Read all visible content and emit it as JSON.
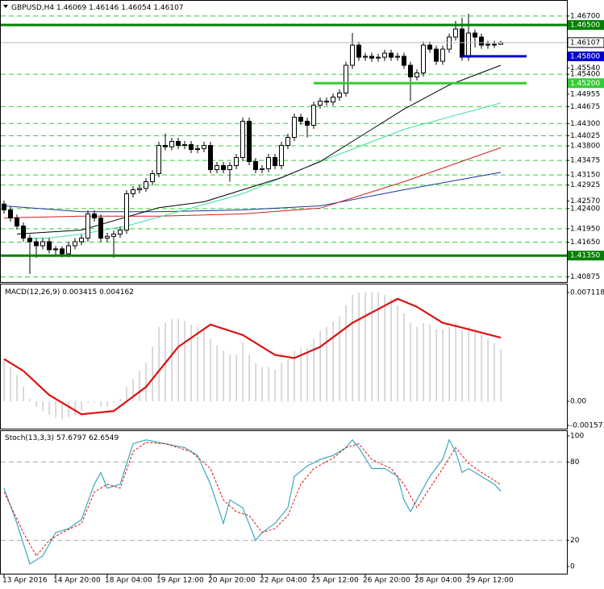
{
  "chart_data": [
    {
      "type": "candlestick",
      "title": "GBPUSD,H4",
      "categories": [
        "13 Apr 2016",
        null,
        null,
        null,
        null,
        null,
        null,
        null,
        "14 Apr 20:00",
        null,
        null,
        null,
        null,
        null,
        null,
        null,
        "18 Apr 04:00",
        null,
        null,
        null,
        null,
        null,
        null,
        null,
        "19 Apr 12:00",
        null,
        null,
        null,
        null,
        null,
        null,
        null,
        "20 Apr 20:00",
        null,
        null,
        null,
        null,
        null,
        null,
        null,
        "22 Apr 04:00",
        null,
        null,
        null,
        null,
        null,
        null,
        null,
        "25 Apr 12:00",
        null,
        null,
        null,
        null,
        null,
        null,
        null,
        "26 Apr 20:00",
        null,
        null,
        null,
        null,
        null,
        null,
        null,
        "28 Apr 04:00",
        null,
        null,
        null,
        null,
        null,
        null,
        null,
        "29 Apr 12:00",
        null,
        null,
        null,
        null,
        null
      ],
      "ohlc": [
        [
          1.425,
          1.4258,
          1.4229,
          1.4237
        ],
        [
          1.4237,
          1.4245,
          1.4211,
          1.4219
        ],
        [
          1.4219,
          1.4227,
          1.4193,
          1.4201
        ],
        [
          1.4201,
          1.4209,
          1.4166,
          1.4174
        ],
        [
          1.4174,
          1.4182,
          1.4094,
          1.4166
        ],
        [
          1.4166,
          1.4174,
          1.413,
          1.4157
        ],
        [
          1.4157,
          1.4174,
          1.4149,
          1.4166
        ],
        [
          1.4166,
          1.4174,
          1.414,
          1.4148
        ],
        [
          1.4148,
          1.4156,
          1.4135,
          1.415
        ],
        [
          1.415,
          1.4156,
          1.4131,
          1.4139
        ],
        [
          1.4139,
          1.4165,
          1.4131,
          1.4157
        ],
        [
          1.4157,
          1.4174,
          1.4149,
          1.4166
        ],
        [
          1.4166,
          1.4182,
          1.4158,
          1.4174
        ],
        [
          1.4174,
          1.4236,
          1.4166,
          1.4228
        ],
        [
          1.4228,
          1.4236,
          1.4211,
          1.4219
        ],
        [
          1.4219,
          1.4227,
          1.4166,
          1.4174
        ],
        [
          1.4174,
          1.4186,
          1.4166,
          1.4178
        ],
        [
          1.4178,
          1.4191,
          1.413,
          1.4183
        ],
        [
          1.4183,
          1.42,
          1.4175,
          1.4192
        ],
        [
          1.4192,
          1.4281,
          1.4184,
          1.4273
        ],
        [
          1.4273,
          1.429,
          1.4265,
          1.4282
        ],
        [
          1.4282,
          1.4293,
          1.4274,
          1.4285
        ],
        [
          1.4285,
          1.4308,
          1.4277,
          1.43
        ],
        [
          1.43,
          1.4326,
          1.4292,
          1.4318
        ],
        [
          1.4318,
          1.4389,
          1.431,
          1.4381
        ],
        [
          1.4381,
          1.4408,
          1.437,
          1.4378
        ],
        [
          1.4378,
          1.4398,
          1.437,
          1.439
        ],
        [
          1.439,
          1.4398,
          1.4373,
          1.4381
        ],
        [
          1.4381,
          1.4391,
          1.4373,
          1.4383
        ],
        [
          1.4383,
          1.4391,
          1.4364,
          1.4372
        ],
        [
          1.4372,
          1.4382,
          1.4364,
          1.4374
        ],
        [
          1.4374,
          1.4389,
          1.4366,
          1.4381
        ],
        [
          1.4381,
          1.4389,
          1.4319,
          1.4327
        ],
        [
          1.4327,
          1.4344,
          1.4319,
          1.4336
        ],
        [
          1.4336,
          1.4344,
          1.4319,
          1.4327
        ],
        [
          1.4327,
          1.4344,
          1.43,
          1.4336
        ],
        [
          1.4336,
          1.4362,
          1.4328,
          1.4354
        ],
        [
          1.4354,
          1.4443,
          1.4346,
          1.4435
        ],
        [
          1.4435,
          1.4443,
          1.4337,
          1.4345
        ],
        [
          1.4345,
          1.4353,
          1.4319,
          1.4327
        ],
        [
          1.4327,
          1.4337,
          1.4319,
          1.4329
        ],
        [
          1.4329,
          1.4362,
          1.4321,
          1.4354
        ],
        [
          1.4354,
          1.4362,
          1.4328,
          1.4336
        ],
        [
          1.4336,
          1.4389,
          1.4328,
          1.4381
        ],
        [
          1.4381,
          1.4407,
          1.4373,
          1.4399
        ],
        [
          1.4399,
          1.4452,
          1.4391,
          1.4444
        ],
        [
          1.4444,
          1.4452,
          1.4427,
          1.4435
        ],
        [
          1.4435,
          1.4443,
          1.4399,
          1.4426
        ],
        [
          1.4426,
          1.4479,
          1.4418,
          1.4471
        ],
        [
          1.4471,
          1.4488,
          1.4463,
          1.448
        ],
        [
          1.448,
          1.4488,
          1.447,
          1.4478
        ],
        [
          1.4478,
          1.4497,
          1.447,
          1.4489
        ],
        [
          1.4489,
          1.4506,
          1.4481,
          1.4498
        ],
        [
          1.4498,
          1.4568,
          1.449,
          1.456
        ],
        [
          1.456,
          1.4632,
          1.4552,
          1.4605
        ],
        [
          1.4605,
          1.4613,
          1.457,
          1.4578
        ],
        [
          1.4578,
          1.4588,
          1.457,
          1.458
        ],
        [
          1.458,
          1.4588,
          1.4568,
          1.4576
        ],
        [
          1.4576,
          1.4586,
          1.4568,
          1.4578
        ],
        [
          1.4578,
          1.4595,
          1.457,
          1.4587
        ],
        [
          1.4587,
          1.4595,
          1.457,
          1.4578
        ],
        [
          1.4578,
          1.4588,
          1.457,
          1.458
        ],
        [
          1.458,
          1.4588,
          1.4552,
          1.456
        ],
        [
          1.456,
          1.4568,
          1.448,
          1.4534
        ],
        [
          1.4534,
          1.4551,
          1.4526,
          1.4543
        ],
        [
          1.4543,
          1.4613,
          1.4535,
          1.4605
        ],
        [
          1.4605,
          1.4613,
          1.4588,
          1.4596
        ],
        [
          1.4596,
          1.4604,
          1.4561,
          1.4569
        ],
        [
          1.4569,
          1.4604,
          1.4561,
          1.4596
        ],
        [
          1.4596,
          1.4631,
          1.4588,
          1.4623
        ],
        [
          1.4623,
          1.4659,
          1.4615,
          1.4641
        ],
        [
          1.4641,
          1.4666,
          1.457,
          1.4578
        ],
        [
          1.4578,
          1.4675,
          1.457,
          1.4632
        ],
        [
          1.4632,
          1.464,
          1.46,
          1.4623
        ],
        [
          1.4623,
          1.4631,
          1.4597,
          1.4605
        ],
        [
          1.4605,
          1.4615,
          1.4597,
          1.4607
        ],
        [
          1.4607,
          1.4615,
          1.4599,
          1.46069
        ],
        [
          1.46069,
          1.46146,
          1.46054,
          1.46107
        ]
      ],
      "series": [
        {
          "color": "#2030a0",
          "x": [
            0,
            12,
            24,
            37,
            49,
            62,
            77
          ],
          "values": [
            1.4246,
            1.4233,
            1.4233,
            1.4237,
            1.4246,
            1.4282,
            1.4321
          ]
        },
        {
          "color": "#d02020",
          "x": [
            0,
            12,
            24,
            37,
            49,
            62,
            77
          ],
          "values": [
            1.4219,
            1.4223,
            1.4223,
            1.4228,
            1.4241,
            1.43,
            1.4376
          ]
        },
        {
          "color": "#40e0a0",
          "x": [
            4,
            7,
            12,
            19,
            28,
            37,
            49,
            62,
            77
          ],
          "values": [
            1.4174,
            1.4174,
            1.4183,
            1.4201,
            1.4237,
            1.4273,
            1.4345,
            1.4417,
            1.4476
          ]
        },
        {
          "color": "#000000",
          "x": [
            2,
            12,
            24,
            31,
            37,
            43,
            49,
            56,
            62,
            69,
            77
          ],
          "values": [
            1.4183,
            1.4192,
            1.4242,
            1.4255,
            1.4282,
            1.4309,
            1.4345,
            1.4408,
            1.4462,
            1.4516,
            1.456
          ]
        }
      ],
      "ylim": [
        1.4076,
        1.4704
      ],
      "yticks": [
        {
          "value": 1.4554,
          "label": "1.45540"
        },
        1.44955,
        {
          "value": 1.4257,
          "label": "1.42570"
        }
      ],
      "levels": [
        {
          "value": 1.467,
          "label": "1.46700"
        },
        {
          "value": 1.454,
          "label": "1.45400"
        },
        1.44675,
        {
          "value": 1.443,
          "label": "1.44300"
        },
        1.44025,
        {
          "value": 1.438,
          "label": "1.43800"
        },
        1.43475,
        {
          "value": 1.4315,
          "label": "1.43150"
        },
        1.42925,
        {
          "value": 1.424,
          "label": "1.42400"
        },
        {
          "value": 1.4195,
          "label": "1.41950"
        },
        {
          "value": 1.4165,
          "label": "1.41650"
        },
        1.40875
      ],
      "level_color": "#33cc33",
      "hlines": [
        {
          "value": 1.465,
          "label": "1.46500",
          "color": "#008000"
        },
        {
          "value": 1.4135,
          "label": "1.41350",
          "color": "#008000"
        },
        {
          "value": 1.452,
          "label": "1.45200",
          "color": "#33cc33",
          "start": 48,
          "end": 81
        },
        {
          "value": 1.458,
          "label": "1.45800",
          "color": "#0000cc",
          "start": 71,
          "end": 81
        }
      ]
    },
    {
      "type": "macd",
      "title": "MACD(12,26,9)",
      "values": [
        0.00277,
        0.00225,
        0.00173,
        0.00094,
        0.00016,
        -0.00037,
        -0.00063,
        -0.00089,
        -0.00105,
        -0.00115,
        -0.00105,
        -0.00089,
        -0.00063,
        -0.0001,
        -0.0001,
        -0.00037,
        -0.00037,
        -0.0001,
        0.00016,
        0.00094,
        0.00147,
        0.00199,
        0.00251,
        0.00356,
        0.00487,
        0.00513,
        0.00539,
        0.00539,
        0.00523,
        0.00502,
        0.00487,
        0.00471,
        0.00408,
        0.00366,
        0.0033,
        0.00304,
        0.00304,
        0.00382,
        0.00304,
        0.00251,
        0.00225,
        0.00225,
        0.00209,
        0.00251,
        0.00277,
        0.0033,
        0.00345,
        0.00345,
        0.00408,
        0.00461,
        0.00487,
        0.00523,
        0.00555,
        0.00628,
        0.00696,
        0.00712,
        0.00712,
        0.00712,
        0.00712,
        0.00696,
        0.0067,
        0.00628,
        0.00576,
        0.00513,
        0.00487,
        0.00513,
        0.00502,
        0.00471,
        0.00471,
        0.00487,
        0.00513,
        0.00471,
        0.00487,
        0.00461,
        0.00434,
        0.00408,
        0.00382,
        0.003415
      ],
      "color": "#c0c0c0",
      "signal": {
        "color": "#dd1111",
        "x": [
          0,
          3,
          7,
          12,
          17,
          22,
          27,
          32,
          37,
          42,
          45,
          49,
          54,
          61,
          64,
          68,
          71,
          77
        ],
        "values": [
          0.00277,
          0.00199,
          0.00042,
          -0.00084,
          -0.00063,
          0.00094,
          0.00356,
          0.00502,
          0.00434,
          0.00304,
          0.00283,
          0.00356,
          0.00513,
          0.0067,
          0.00618,
          0.00513,
          0.00482,
          0.004162
        ]
      },
      "ylim": [
        -0.00178,
        0.00764
      ],
      "yticks": [
        0.007118,
        {
          "value": 0,
          "label": "0.00"
        },
        -0.001571
      ]
    },
    {
      "type": "stoch",
      "title": "Stoch(13,3,3)",
      "main": {
        "color": "#3aa8c0",
        "x": [
          0,
          2,
          4,
          6,
          8,
          10,
          12,
          14,
          15,
          16,
          18,
          20,
          22,
          24,
          28,
          30,
          32,
          34,
          35,
          37,
          39,
          40,
          42,
          44,
          45,
          47,
          49,
          51,
          53,
          54,
          55,
          57,
          59,
          61,
          62,
          63,
          64,
          66,
          68,
          69,
          70,
          71,
          72,
          74,
          76,
          77
        ],
        "values": [
          60,
          33,
          2,
          8,
          26,
          29,
          36,
          63,
          72,
          60,
          63,
          94,
          97,
          95,
          91,
          85,
          63,
          33,
          51,
          45,
          20,
          26,
          33,
          45,
          69,
          77,
          82,
          85,
          91,
          97,
          91,
          75,
          75,
          69,
          51,
          42,
          51,
          69,
          82,
          97,
          88,
          72,
          75,
          69,
          63,
          57.6797
        ]
      },
      "signal": {
        "color": "#dd1111",
        "x": [
          0,
          3,
          5,
          7,
          9,
          12,
          14,
          16,
          18,
          20,
          22,
          25,
          29,
          32,
          34,
          36,
          38,
          40,
          42,
          44,
          46,
          48,
          51,
          53,
          55,
          57,
          60,
          62,
          64,
          66,
          68,
          70,
          72,
          74,
          76,
          77
        ],
        "values": [
          57,
          26,
          8,
          20,
          26,
          33,
          57,
          63,
          60,
          88,
          95,
          94,
          88,
          75,
          51,
          42,
          39,
          26,
          29,
          39,
          63,
          75,
          83,
          91,
          94,
          82,
          75,
          63,
          45,
          60,
          75,
          91,
          79,
          72,
          66,
          62.6549
        ]
      },
      "ylim": [
        -5.5,
        103.7
      ],
      "yticks": [
        0,
        20,
        80,
        100
      ],
      "level_lines": [
        20,
        80
      ]
    }
  ]
}
